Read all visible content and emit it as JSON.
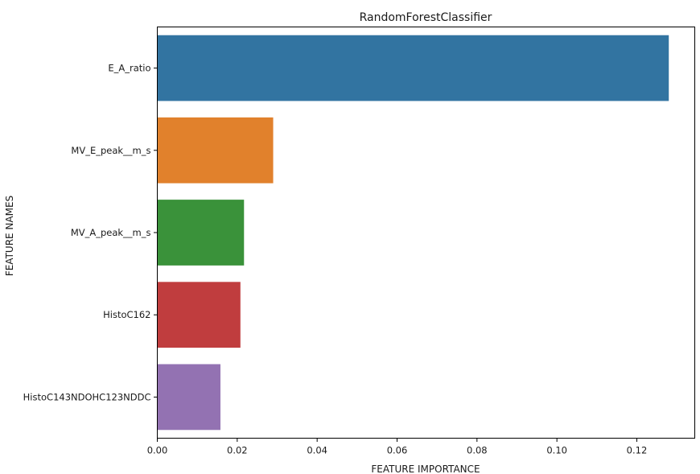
{
  "chart_data": {
    "type": "bar",
    "orientation": "horizontal",
    "title": "RandomForestClassifier",
    "xlabel": "FEATURE IMPORTANCE",
    "ylabel": "FEATURE NAMES",
    "categories": [
      "E_A_ratio",
      "MV_E_peak__m_s",
      "MV_A_peak__m_s",
      "HistoC162",
      "HistoC143NDOHC123NDDC"
    ],
    "values": [
      0.128,
      0.029,
      0.0217,
      0.0208,
      0.0158
    ],
    "colors": [
      "#3274a1",
      "#e1812c",
      "#3a923a",
      "#c03d3e",
      "#9372b2"
    ],
    "xlim": [
      0.0,
      0.1345
    ],
    "xticks": [
      0.0,
      0.02,
      0.04,
      0.06,
      0.08,
      0.1,
      0.12
    ],
    "xtick_labels": [
      "0.00",
      "0.02",
      "0.04",
      "0.06",
      "0.08",
      "0.10",
      "0.12"
    ],
    "grid": false,
    "legend": "none"
  }
}
